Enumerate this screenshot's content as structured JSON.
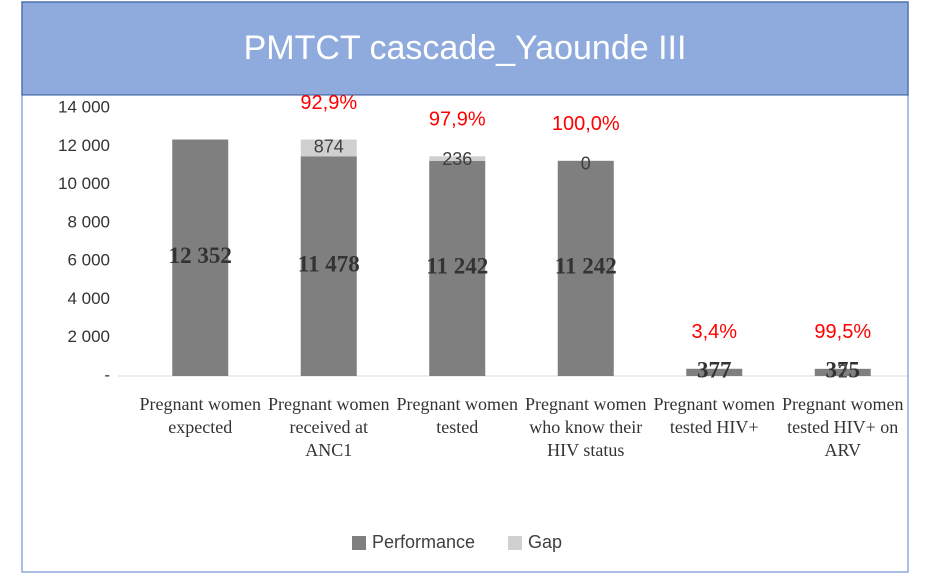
{
  "chart_data": {
    "type": "stacked_bar",
    "title": "PMTCT cascade_Yaounde III",
    "categories": [
      "Pregnant women expected",
      "Pregnant women received at ANC1",
      "Pregnant women tested",
      "Pregnant women who know their HIV status",
      "Pregnant women tested HIV+",
      "Pregnant women tested HIV+ on ARV"
    ],
    "series": [
      {
        "name": "Performance",
        "color": "#7f7f7f",
        "values": [
          12352,
          11478,
          11242,
          11242,
          377,
          375
        ],
        "value_labels": [
          "12 352",
          "11 478",
          "11 242",
          "11 242",
          "377",
          "375"
        ]
      },
      {
        "name": "Gap",
        "color": "#d0d0d0",
        "values": [
          null,
          874,
          236,
          0,
          null,
          2
        ]
      }
    ],
    "annotations": [
      null,
      "92,9%",
      "97,9%",
      "100,0%",
      "3,4%",
      "99,5%"
    ],
    "annotation_color": "#ff0000",
    "ylim": [
      0,
      14000
    ],
    "yticks": [
      {
        "value": 0,
        "label": "-"
      },
      {
        "value": 2000,
        "label": "2 000"
      },
      {
        "value": 4000,
        "label": "4 000"
      },
      {
        "value": 6000,
        "label": "6 000"
      },
      {
        "value": 8000,
        "label": "8 000"
      },
      {
        "value": 10000,
        "label": "10 000"
      },
      {
        "value": 12000,
        "label": "12 000"
      },
      {
        "value": 14000,
        "label": "14 000"
      }
    ],
    "grid": false,
    "legend": "bottom"
  }
}
